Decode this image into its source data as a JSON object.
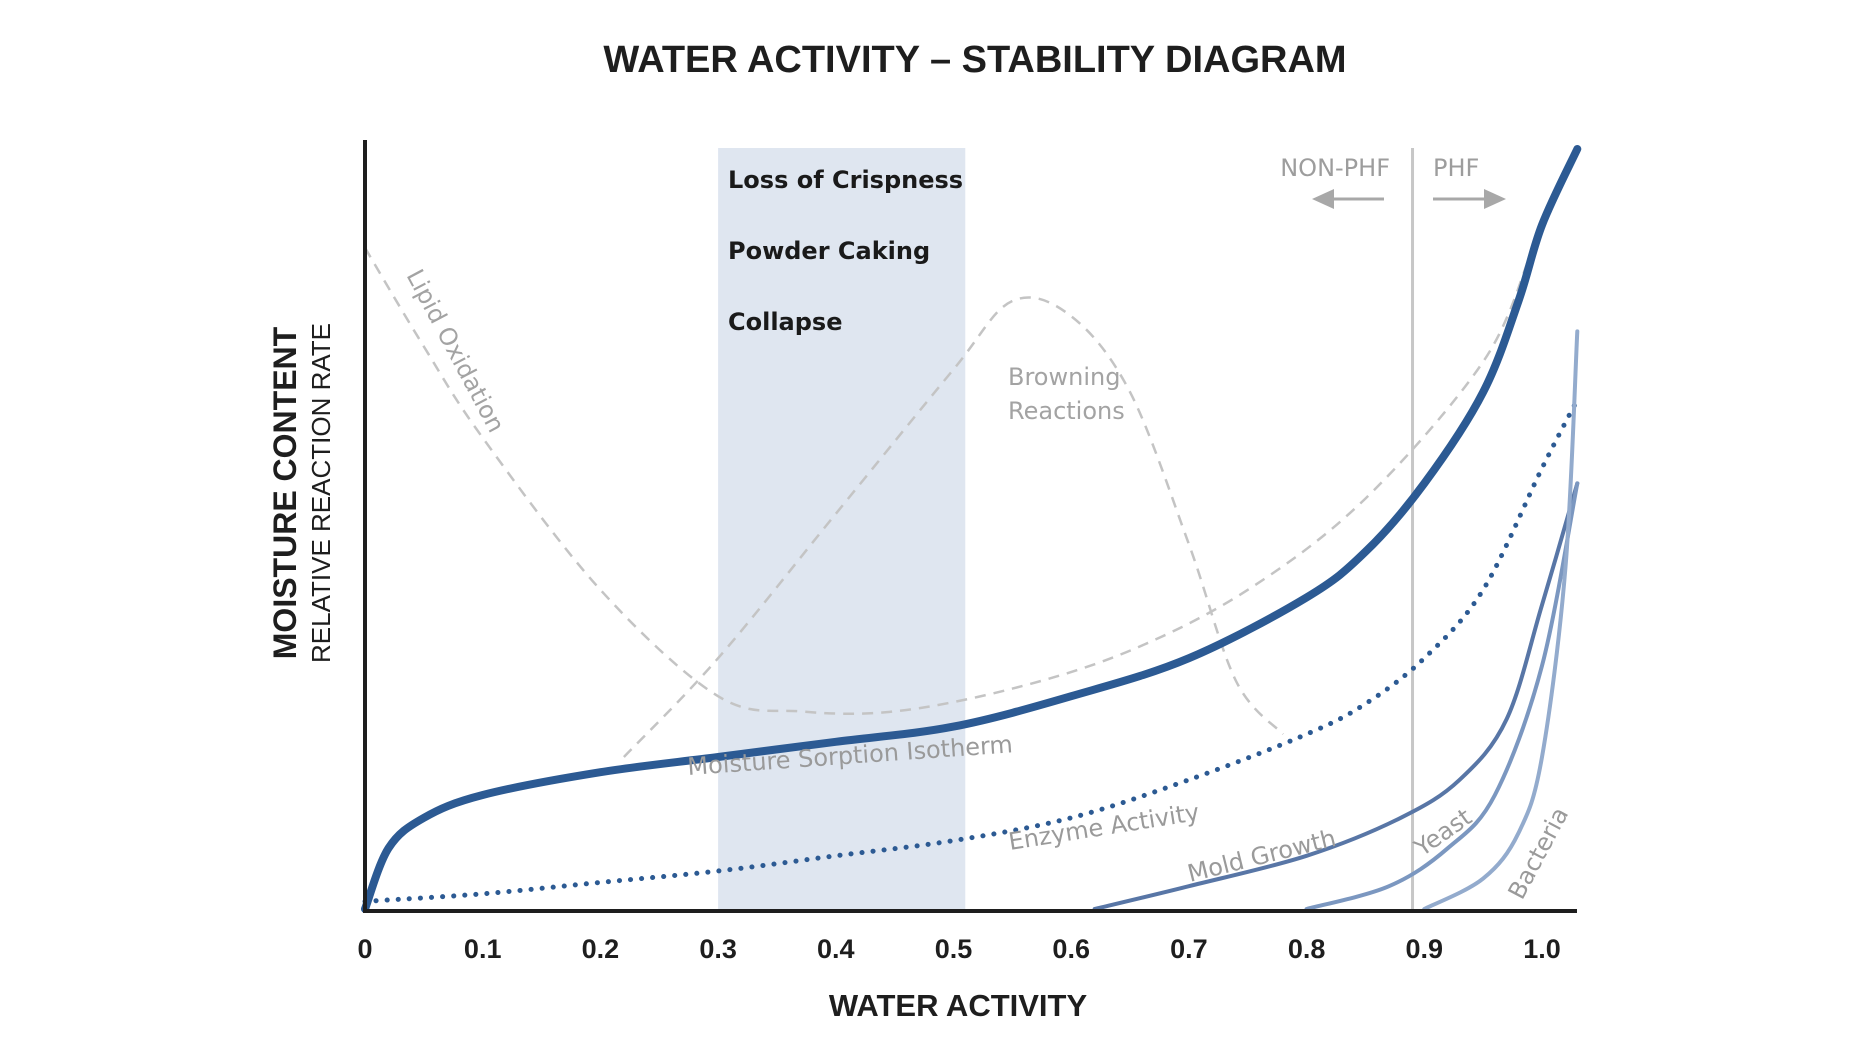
{
  "chart_data": {
    "type": "line",
    "title": "WATER ACTIVITY – STABILITY DIAGRAM",
    "xlabel": "WATER ACTIVITY",
    "ylabel": "MOISTURE CONTENT",
    "ylabel_secondary": "RELATIVE REACTION RATE",
    "xlim": [
      0,
      1.03
    ],
    "ylim": [
      0,
      100
    ],
    "x_ticks": [
      "0",
      "0.1",
      "0.2",
      "0.3",
      "0.4",
      "0.5",
      "0.6",
      "0.7",
      "0.8",
      "0.9",
      "1.0"
    ],
    "shaded_band": {
      "x_range": [
        0.3,
        0.51
      ],
      "labels": [
        "Loss of Crispness",
        "Powder Caking",
        "Collapse"
      ]
    },
    "phf_boundary": {
      "x": 0.89,
      "left_label": "NON-PHF",
      "right_label": "PHF"
    },
    "series": [
      {
        "name": "Moisture Sorption Isotherm",
        "style": "solid-thick",
        "color": "#2c5a93",
        "x": [
          0,
          0.02,
          0.05,
          0.1,
          0.2,
          0.3,
          0.4,
          0.5,
          0.6,
          0.7,
          0.8,
          0.85,
          0.9,
          0.95,
          0.98,
          1.0,
          1.03
        ],
        "y": [
          0,
          8,
          12,
          15,
          18,
          20,
          22,
          24,
          28,
          33,
          41,
          47,
          56,
          68,
          80,
          90,
          100
        ]
      },
      {
        "name": "Enzyme Activity",
        "style": "dotted",
        "color": "#2c5a93",
        "x": [
          0,
          0.1,
          0.2,
          0.3,
          0.4,
          0.5,
          0.6,
          0.7,
          0.8,
          0.85,
          0.9,
          0.95,
          1.0,
          1.03
        ],
        "y": [
          1,
          2,
          3.5,
          5,
          7,
          9,
          12,
          17,
          23,
          27,
          33,
          42,
          58,
          67
        ]
      },
      {
        "name": "Mold Growth",
        "style": "solid",
        "color": "#5876a6",
        "x": [
          0.62,
          0.7,
          0.8,
          0.88,
          0.93,
          0.97,
          1.0,
          1.03
        ],
        "y": [
          0,
          3,
          7,
          12,
          17,
          25,
          40,
          56
        ]
      },
      {
        "name": "Yeast",
        "style": "solid",
        "color": "#7b97c0",
        "x": [
          0.8,
          0.87,
          0.92,
          0.96,
          1.0,
          1.03
        ],
        "y": [
          0,
          3,
          8,
          15,
          32,
          56
        ]
      },
      {
        "name": "Bacteria",
        "style": "solid",
        "color": "#93abcd",
        "x": [
          0.9,
          0.95,
          0.98,
          1.0,
          1.02,
          1.03
        ],
        "y": [
          0,
          4,
          10,
          20,
          45,
          76
        ]
      },
      {
        "name": "Lipid Oxidation",
        "style": "dashed",
        "color": "#c4c4c4",
        "x": [
          0.0,
          0.05,
          0.1,
          0.2,
          0.3,
          0.37,
          0.45,
          0.55,
          0.65,
          0.75,
          0.85,
          0.95,
          0.99
        ],
        "y": [
          87,
          74,
          62,
          42,
          28,
          26,
          26,
          29,
          34,
          42,
          54,
          72,
          86
        ]
      },
      {
        "name": "Browning Reactions",
        "style": "dashed",
        "color": "#c4c4c4",
        "x": [
          0.22,
          0.3,
          0.4,
          0.5,
          0.55,
          0.6,
          0.65,
          0.7,
          0.74,
          0.78
        ],
        "y": [
          20,
          33,
          52,
          71,
          80,
          78,
          68,
          48,
          30,
          23
        ]
      }
    ],
    "curve_labels": {
      "sorption": "Moisture Sorption Isotherm",
      "enzyme": "Enzyme Activity",
      "mold": "Mold Growth",
      "yeast": "Yeast",
      "bacteria": "Bacteria",
      "lipid_line1": "Lipid Oxidation",
      "browning_line1": "Browning",
      "browning_line2": "Reactions"
    }
  },
  "colors": {
    "band": "#dfe6f0",
    "axis": "#1e1e1e",
    "phf_line": "#c7c7c7",
    "arrow": "#a8a8a8"
  }
}
